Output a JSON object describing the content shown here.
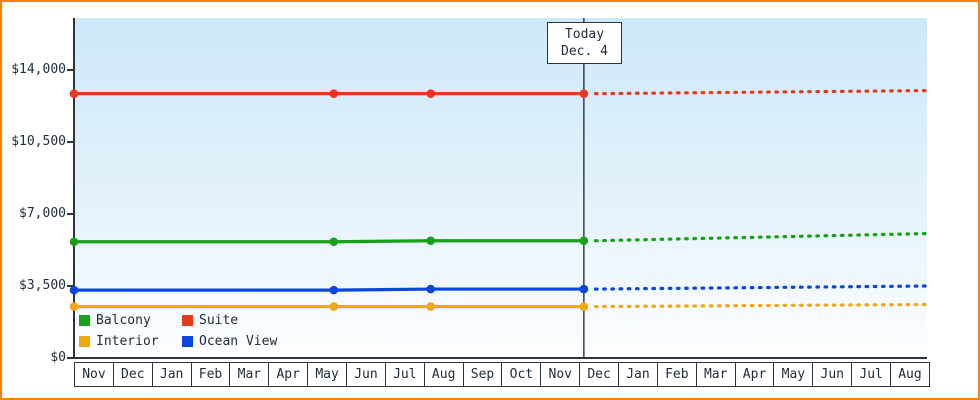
{
  "frame": {
    "border_color": "#ff8000",
    "background_color": "#ffffff",
    "text_color": "#1c2b3a"
  },
  "chart_data": {
    "type": "line",
    "title": "",
    "axis_color": "#2b3440",
    "plot_background_top": "#cde8f9",
    "plot_background_bottom": "#fdfeff",
    "grid": false,
    "legend_position": "bottom-left-inside",
    "ylim": [
      0,
      16500
    ],
    "y_ticks": [
      {
        "label": "$0",
        "value": 0
      },
      {
        "label": "$3,500",
        "value": 3500
      },
      {
        "label": "$7,000",
        "value": 7000
      },
      {
        "label": "$10,500",
        "value": 10500
      },
      {
        "label": "$14,000",
        "value": 14000
      }
    ],
    "x_months": [
      "Nov",
      "Dec",
      "Jan",
      "Feb",
      "Mar",
      "Apr",
      "May",
      "Jun",
      "Jul",
      "Aug",
      "Sep",
      "Oct",
      "Nov",
      "Dec",
      "Jan",
      "Feb",
      "Mar",
      "Apr",
      "May",
      "Jun",
      "Jul",
      "Aug"
    ],
    "today": {
      "month_index": 13.15,
      "label_line1": "Today",
      "label_line2": "Dec. 4"
    },
    "series": [
      {
        "name": "Interior",
        "color": "#efa712",
        "history": [
          [
            0,
            2500
          ],
          [
            6.7,
            2500
          ],
          [
            9.2,
            2500
          ],
          [
            13.15,
            2500
          ]
        ],
        "forecast": [
          [
            13.45,
            2500
          ],
          [
            22,
            2600
          ]
        ]
      },
      {
        "name": "Ocean View",
        "color": "#0a46dc",
        "history": [
          [
            0,
            3300
          ],
          [
            6.7,
            3300
          ],
          [
            9.2,
            3350
          ],
          [
            13.15,
            3350
          ]
        ],
        "forecast": [
          [
            13.45,
            3350
          ],
          [
            22,
            3500
          ]
        ]
      },
      {
        "name": "Balcony",
        "color": "#19a019",
        "history": [
          [
            0,
            5650
          ],
          [
            6.7,
            5650
          ],
          [
            9.2,
            5700
          ],
          [
            13.15,
            5700
          ]
        ],
        "forecast": [
          [
            13.45,
            5700
          ],
          [
            22,
            6050
          ]
        ]
      },
      {
        "name": "Suite",
        "color": "#e8391d",
        "history": [
          [
            0,
            12850
          ],
          [
            6.7,
            12850
          ],
          [
            9.2,
            12850
          ],
          [
            13.15,
            12850
          ]
        ],
        "forecast": [
          [
            13.45,
            12850
          ],
          [
            22,
            13000
          ]
        ]
      }
    ],
    "legend": [
      {
        "label": "Balcony",
        "color": "#19a019"
      },
      {
        "label": "Suite",
        "color": "#e8391d"
      },
      {
        "label": "Interior",
        "color": "#efa712"
      },
      {
        "label": "Ocean View",
        "color": "#0a46dc"
      }
    ]
  }
}
